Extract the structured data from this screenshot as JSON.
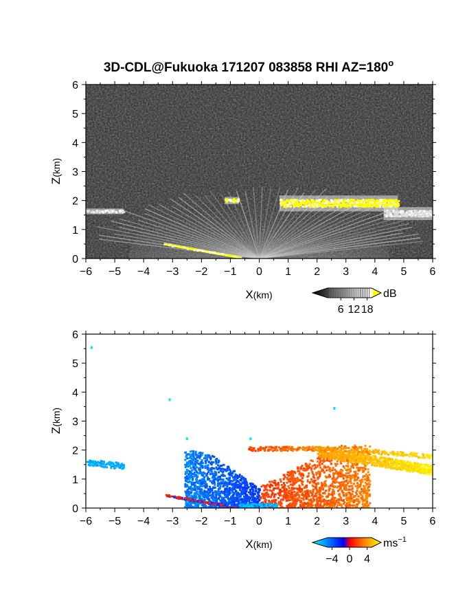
{
  "title": "3D-CDL@Fukuoka 171207 083858 RHI AZ=180",
  "title_superscript": "o",
  "chart_data": [
    {
      "type": "heatmap",
      "name": "reflectivity",
      "xlabel_main": "X",
      "xlabel_unit": "(km)",
      "ylabel_main": "Z",
      "ylabel_unit": "(km)",
      "xlim": [
        -6,
        6
      ],
      "ylim": [
        0,
        6
      ],
      "xticks": [
        "-6",
        "-5",
        "-4",
        "-3",
        "-2",
        "-1",
        "0",
        "1",
        "2",
        "3",
        "4",
        "5",
        "6"
      ],
      "yticks": [
        "0",
        "1",
        "2",
        "3",
        "4",
        "5",
        "6"
      ],
      "background": "noise",
      "colorbar": {
        "unit": "dB",
        "ticks": [
          "6",
          "12",
          "18"
        ],
        "tick_values": [
          6,
          12,
          18
        ],
        "range": [
          0,
          20
        ],
        "colors": [
          "#000000",
          "#ffffff",
          "#ffff00"
        ]
      },
      "features": [
        {
          "kind": "cloud-layer",
          "x": [
            0.7,
            4.8
          ],
          "z_top": 2.15,
          "z_bottom": 1.65,
          "value_db": 20
        },
        {
          "kind": "cloud-patch",
          "x": [
            -1.2,
            -0.7
          ],
          "z_top": 2.1,
          "z_bottom": 1.9,
          "value_db": 20
        },
        {
          "kind": "cloud-patch",
          "x": [
            4.3,
            6.0
          ],
          "z_top": 1.75,
          "z_bottom": 1.35,
          "value_db": 15
        },
        {
          "kind": "cloud-patch",
          "x": [
            -6.0,
            -4.7
          ],
          "z_top": 1.7,
          "z_bottom": 1.55,
          "value_db": 14
        },
        {
          "kind": "ground-clutter",
          "x": [
            -3.3,
            -0.6
          ],
          "z": [
            0.5,
            0.02
          ],
          "value_db": 20
        }
      ]
    },
    {
      "type": "heatmap",
      "name": "doppler-velocity",
      "xlabel_main": "X",
      "xlabel_unit": "(km)",
      "ylabel_main": "Z",
      "ylabel_unit": "(km)",
      "xlim": [
        -6,
        6
      ],
      "ylim": [
        0,
        6
      ],
      "xticks": [
        "-6",
        "-5",
        "-4",
        "-3",
        "-2",
        "-1",
        "0",
        "1",
        "2",
        "3",
        "4",
        "5",
        "6"
      ],
      "yticks": [
        "0",
        "1",
        "2",
        "3",
        "4",
        "5",
        "6"
      ],
      "colorbar": {
        "unit": "ms",
        "unit_exponent": "-1",
        "ticks": [
          "-4",
          "0",
          "4"
        ],
        "tick_values": [
          -4,
          0,
          4
        ],
        "range": [
          -5,
          5
        ],
        "colors": [
          "#00ffff",
          "#0000ff",
          "#ff0000",
          "#ffff00"
        ]
      },
      "features": [
        {
          "kind": "approaching-cone",
          "x": [
            -2.6,
            0.0
          ],
          "z_top": 2.0,
          "v_ms": -3.0
        },
        {
          "kind": "receding-cone",
          "x": [
            0.0,
            3.8
          ],
          "z_top": 2.2,
          "v_ms": 2.5
        },
        {
          "kind": "receding-layer",
          "x": [
            2.0,
            6.0
          ],
          "z_top": 2.05,
          "z_bottom": 1.4,
          "v_ms": 4.0
        },
        {
          "kind": "approaching-patch",
          "x": [
            -6.0,
            -4.7
          ],
          "z": 1.6,
          "v_ms": -4.0
        },
        {
          "kind": "speckles",
          "points": [
            [
              -5.8,
              5.55
            ],
            [
              -3.1,
              3.75
            ],
            [
              -2.5,
              2.4
            ],
            [
              2.6,
              3.45
            ],
            [
              -0.3,
              2.4
            ]
          ],
          "v_ms": -4.5
        }
      ]
    }
  ]
}
